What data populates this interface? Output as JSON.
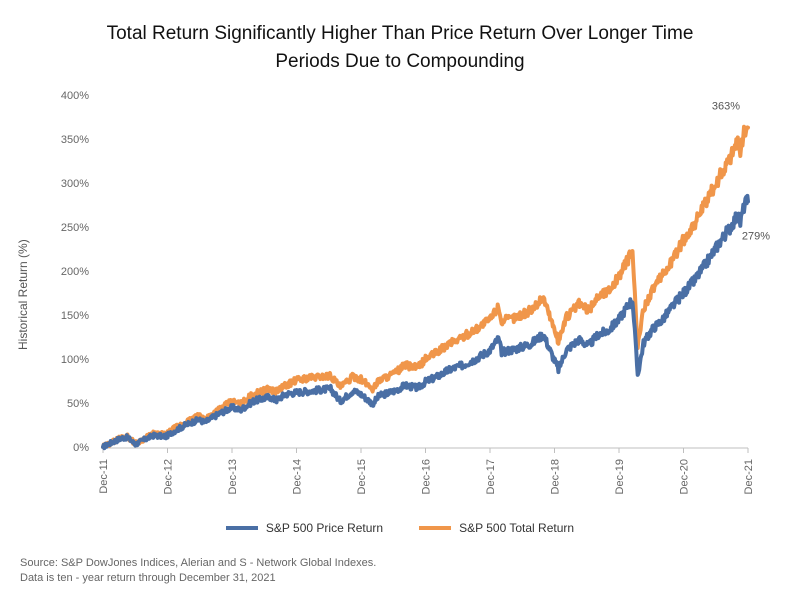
{
  "chart_data": {
    "type": "line",
    "title": "Total Return Significantly Higher Than Price Return Over Longer Time Periods Due to Compounding",
    "title_lines": [
      "Total Return Significantly Higher Than Price Return Over Longer Time",
      "Periods Due to Compounding"
    ],
    "ylabel": "Historical Return (%)",
    "xlabel": "",
    "ylim": [
      0,
      400
    ],
    "yticks": [
      "0%",
      "50%",
      "100%",
      "150%",
      "200%",
      "250%",
      "300%",
      "350%",
      "400%"
    ],
    "yticks_values": [
      0,
      50,
      100,
      150,
      200,
      250,
      300,
      350,
      400
    ],
    "xticks": [
      "Dec-11",
      "Dec-12",
      "Dec-13",
      "Dec-14",
      "Dec-15",
      "Dec-16",
      "Dec-17",
      "Dec-18",
      "Dec-19",
      "Dec-20",
      "Dec-21"
    ],
    "xlim": [
      2011.92,
      2021.92
    ],
    "grid": false,
    "legend_position": "bottom-center",
    "series": [
      {
        "name": "S&P 500 Price Return",
        "color": "#4a6fa5",
        "end_label": "279%",
        "points": [
          [
            2011.92,
            0
          ],
          [
            2012.05,
            5
          ],
          [
            2012.2,
            10
          ],
          [
            2012.3,
            11
          ],
          [
            2012.42,
            3
          ],
          [
            2012.55,
            8
          ],
          [
            2012.7,
            13
          ],
          [
            2012.9,
            12
          ],
          [
            2013.0,
            17
          ],
          [
            2013.2,
            25
          ],
          [
            2013.4,
            31
          ],
          [
            2013.5,
            28
          ],
          [
            2013.7,
            37
          ],
          [
            2013.92,
            45
          ],
          [
            2014.05,
            42
          ],
          [
            2014.25,
            52
          ],
          [
            2014.5,
            57
          ],
          [
            2014.6,
            53
          ],
          [
            2014.75,
            60
          ],
          [
            2014.92,
            62
          ],
          [
            2015.05,
            63
          ],
          [
            2015.3,
            65
          ],
          [
            2015.45,
            66
          ],
          [
            2015.6,
            52
          ],
          [
            2015.8,
            64
          ],
          [
            2015.92,
            60
          ],
          [
            2016.1,
            49
          ],
          [
            2016.2,
            58
          ],
          [
            2016.45,
            64
          ],
          [
            2016.6,
            70
          ],
          [
            2016.8,
            67
          ],
          [
            2016.92,
            74
          ],
          [
            2017.1,
            80
          ],
          [
            2017.3,
            88
          ],
          [
            2017.5,
            93
          ],
          [
            2017.7,
            100
          ],
          [
            2017.92,
            110
          ],
          [
            2018.05,
            123
          ],
          [
            2018.1,
            108
          ],
          [
            2018.3,
            111
          ],
          [
            2018.55,
            117
          ],
          [
            2018.75,
            128
          ],
          [
            2018.85,
            110
          ],
          [
            2018.98,
            88
          ],
          [
            2019.1,
            110
          ],
          [
            2019.3,
            122
          ],
          [
            2019.45,
            115
          ],
          [
            2019.6,
            128
          ],
          [
            2019.75,
            132
          ],
          [
            2019.92,
            145
          ],
          [
            2020.05,
            160
          ],
          [
            2020.13,
            168
          ],
          [
            2020.21,
            82
          ],
          [
            2020.3,
            118
          ],
          [
            2020.45,
            135
          ],
          [
            2020.6,
            145
          ],
          [
            2020.75,
            160
          ],
          [
            2020.92,
            175
          ],
          [
            2021.1,
            190
          ],
          [
            2021.3,
            212
          ],
          [
            2021.5,
            235
          ],
          [
            2021.65,
            250
          ],
          [
            2021.75,
            263
          ],
          [
            2021.8,
            255
          ],
          [
            2021.87,
            277
          ],
          [
            2021.92,
            279
          ]
        ]
      },
      {
        "name": "S&P 500 Total Return",
        "color": "#f0964a",
        "end_label": "363%",
        "points": [
          [
            2011.92,
            0
          ],
          [
            2012.05,
            5
          ],
          [
            2012.2,
            11
          ],
          [
            2012.3,
            12
          ],
          [
            2012.42,
            4
          ],
          [
            2012.55,
            9
          ],
          [
            2012.7,
            15
          ],
          [
            2012.9,
            14
          ],
          [
            2013.0,
            20
          ],
          [
            2013.2,
            28
          ],
          [
            2013.4,
            35
          ],
          [
            2013.5,
            32
          ],
          [
            2013.7,
            42
          ],
          [
            2013.92,
            52
          ],
          [
            2014.05,
            49
          ],
          [
            2014.25,
            60
          ],
          [
            2014.5,
            66
          ],
          [
            2014.6,
            63
          ],
          [
            2014.75,
            70
          ],
          [
            2014.92,
            76
          ],
          [
            2015.05,
            78
          ],
          [
            2015.3,
            80
          ],
          [
            2015.45,
            81
          ],
          [
            2015.6,
            68
          ],
          [
            2015.8,
            80
          ],
          [
            2015.92,
            77
          ],
          [
            2016.1,
            66
          ],
          [
            2016.2,
            76
          ],
          [
            2016.45,
            84
          ],
          [
            2016.6,
            93
          ],
          [
            2016.8,
            90
          ],
          [
            2016.92,
            100
          ],
          [
            2017.1,
            108
          ],
          [
            2017.3,
            118
          ],
          [
            2017.5,
            125
          ],
          [
            2017.7,
            134
          ],
          [
            2017.92,
            145
          ],
          [
            2018.05,
            160
          ],
          [
            2018.1,
            143
          ],
          [
            2018.3,
            147
          ],
          [
            2018.55,
            155
          ],
          [
            2018.75,
            170
          ],
          [
            2018.85,
            148
          ],
          [
            2018.98,
            120
          ],
          [
            2019.1,
            147
          ],
          [
            2019.3,
            163
          ],
          [
            2019.45,
            155
          ],
          [
            2019.6,
            172
          ],
          [
            2019.75,
            177
          ],
          [
            2019.92,
            194
          ],
          [
            2020.05,
            212
          ],
          [
            2020.13,
            222
          ],
          [
            2020.21,
            112
          ],
          [
            2020.3,
            158
          ],
          [
            2020.45,
            180
          ],
          [
            2020.6,
            195
          ],
          [
            2020.75,
            213
          ],
          [
            2020.92,
            235
          ],
          [
            2021.1,
            255
          ],
          [
            2021.3,
            282
          ],
          [
            2021.5,
            310
          ],
          [
            2021.65,
            330
          ],
          [
            2021.75,
            348
          ],
          [
            2021.8,
            338
          ],
          [
            2021.87,
            360
          ],
          [
            2021.92,
            363
          ]
        ]
      }
    ]
  },
  "legend": {
    "items": [
      {
        "label": "S&P 500 Price Return",
        "color": "#4a6fa5"
      },
      {
        "label": "S&P 500 Total Return",
        "color": "#f0964a"
      }
    ]
  },
  "source": {
    "line1": "Source: S&P DowJones Indices, Alerian and S - Network Global Indexes.",
    "line2": "Data is ten - year return through December 31, 2021"
  }
}
